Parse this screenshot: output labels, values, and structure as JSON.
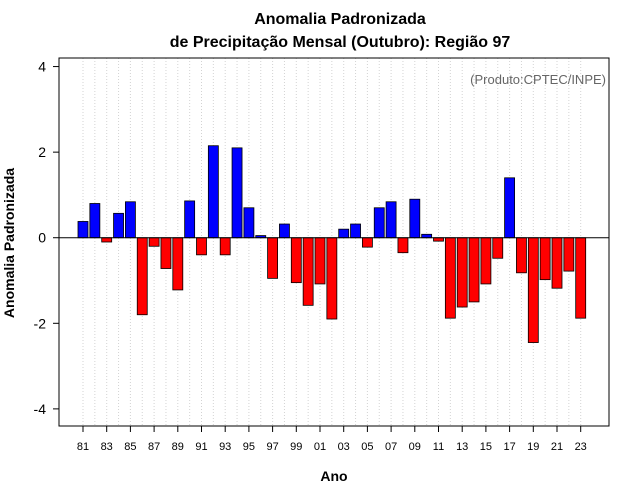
{
  "chart_data": {
    "type": "bar",
    "title_line1": "Anomalia Padronizada",
    "title_line2": "de Precipitação Mensal (Outubro): Região 97",
    "xlabel": "Ano",
    "ylabel": "Anomalia Padronizada",
    "annotation": "(Produto:CPTEC/INPE)",
    "ylim": [
      -4.4,
      4.2
    ],
    "yticks": [
      -4,
      -2,
      0,
      2,
      4
    ],
    "yticklabels": [
      "-4",
      "-2",
      "0",
      "2",
      "4"
    ],
    "categories": [
      "81",
      "82",
      "83",
      "84",
      "85",
      "86",
      "87",
      "88",
      "89",
      "90",
      "91",
      "92",
      "93",
      "94",
      "95",
      "96",
      "97",
      "98",
      "99",
      "00",
      "01",
      "02",
      "03",
      "04",
      "05",
      "06",
      "07",
      "08",
      "09",
      "10",
      "11",
      "12",
      "13",
      "14",
      "15",
      "16",
      "17",
      "18",
      "19",
      "20",
      "21",
      "22",
      "23"
    ],
    "xticklabels": [
      "81",
      "83",
      "85",
      "87",
      "89",
      "91",
      "93",
      "95",
      "97",
      "99",
      "01",
      "03",
      "05",
      "07",
      "09",
      "11",
      "13",
      "15",
      "17",
      "19",
      "21",
      "23"
    ],
    "values": [
      0.38,
      0.8,
      -0.1,
      0.57,
      0.84,
      -1.8,
      -0.2,
      -0.72,
      -1.22,
      0.86,
      -0.4,
      2.15,
      -0.4,
      2.1,
      0.7,
      0.05,
      -0.95,
      0.32,
      -1.05,
      -1.58,
      -1.08,
      -1.9,
      0.2,
      0.32,
      -0.22,
      0.7,
      0.84,
      -0.35,
      0.9,
      0.08,
      -0.08,
      -1.88,
      -1.62,
      -1.5,
      -1.08,
      -0.48,
      1.4,
      -0.82,
      -2.45,
      -0.98,
      -1.18,
      -0.78,
      -1.88
    ],
    "positive_color": "#0000ff",
    "negative_color": "#ff0000",
    "grid": "vertical dotted"
  }
}
